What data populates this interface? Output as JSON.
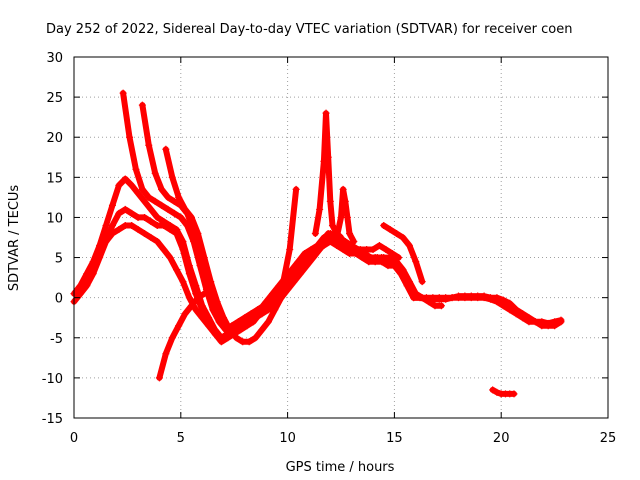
{
  "chart_data": {
    "type": "scatter",
    "title": "Day 252 of 2022, Sidereal Day-to-day VTEC variation (SDTVAR) for receiver coen",
    "xlabel": "GPS time / hours",
    "ylabel": "SDTVAR / TECUs",
    "xlim": [
      0,
      25
    ],
    "ylim": [
      -15,
      30
    ],
    "xticks": [
      0,
      5,
      10,
      15,
      20,
      25
    ],
    "yticks": [
      -15,
      -10,
      -5,
      0,
      5,
      10,
      15,
      20,
      25,
      30
    ],
    "xtick_labels": [
      "0",
      "5",
      "10",
      "15",
      "20",
      "25"
    ],
    "ytick_labels": [
      "-15",
      "-10",
      "-5",
      "0",
      "5",
      "10",
      "15",
      "20",
      "25",
      "30"
    ],
    "grid": true,
    "marker": "+",
    "color": "#ff0000",
    "series": [
      {
        "name": "arc-1",
        "x": [
          0.0,
          0.3,
          0.6,
          0.9,
          1.2,
          1.5,
          1.8,
          2.1,
          2.4,
          2.7,
          3.0,
          3.3,
          3.6,
          3.9,
          4.2,
          4.5,
          4.8,
          5.1,
          5.4,
          5.7,
          6.0,
          6.3,
          6.6,
          6.9,
          7.2,
          7.5,
          7.8,
          8.1,
          8.4,
          8.7,
          9.0,
          9.3,
          9.6,
          9.9,
          10.2,
          10.5,
          10.8,
          11.1,
          11.4,
          11.7,
          12.0,
          12.3,
          12.6,
          12.9,
          13.2,
          13.5,
          13.8,
          14.1,
          14.4,
          14.7,
          15.0
        ],
        "y": [
          0.5,
          1.5,
          3.0,
          4.5,
          6.5,
          9.0,
          11.5,
          14.0,
          14.8,
          14.0,
          13.0,
          12.0,
          11.0,
          10.0,
          9.5,
          9.0,
          8.5,
          7.0,
          4.0,
          1.5,
          -1.0,
          -2.5,
          -4.0,
          -5.0,
          -4.5,
          -4.0,
          -3.5,
          -3.0,
          -2.5,
          -1.5,
          -0.5,
          0.5,
          1.5,
          2.5,
          3.5,
          4.5,
          5.5,
          6.0,
          6.5,
          7.5,
          8.0,
          7.5,
          7.0,
          6.5,
          6.0,
          5.5,
          5.0,
          5.0,
          5.0,
          4.5,
          4.0
        ]
      },
      {
        "name": "arc-2",
        "x": [
          0.0,
          0.3,
          0.6,
          0.9,
          1.2,
          1.5,
          1.8,
          2.1,
          2.4,
          2.7,
          3.0,
          3.3,
          3.6,
          3.9,
          4.2,
          4.5,
          4.8,
          5.1,
          5.4,
          5.7,
          6.0,
          6.3,
          6.6,
          6.9,
          7.2,
          7.5,
          7.8,
          8.1,
          8.4,
          8.7,
          9.0,
          9.3,
          9.6,
          9.9,
          10.2,
          10.5,
          10.8,
          11.1,
          11.4,
          11.7,
          12.0,
          12.3,
          12.6,
          12.9,
          13.2,
          13.5,
          13.8,
          14.1,
          14.4,
          14.7,
          15.0,
          15.3,
          15.6,
          15.9,
          16.2,
          16.5,
          16.8,
          17.1,
          17.4,
          17.7,
          18.0,
          18.3,
          18.6,
          18.9,
          19.2,
          19.5,
          19.8,
          20.1,
          20.4,
          20.7,
          21.0,
          21.3,
          21.6,
          21.9,
          22.2,
          22.5,
          22.8
        ],
        "y": [
          -0.5,
          0.5,
          1.5,
          3.0,
          5.0,
          7.0,
          9.0,
          10.5,
          11.0,
          10.5,
          10.0,
          10.0,
          9.5,
          9.0,
          9.0,
          8.5,
          8.0,
          6.0,
          3.0,
          0.5,
          -1.5,
          -3.0,
          -4.5,
          -5.5,
          -5.0,
          -4.5,
          -4.0,
          -3.5,
          -3.0,
          -2.0,
          -1.0,
          0.0,
          1.0,
          2.0,
          3.0,
          4.0,
          5.0,
          5.5,
          6.0,
          7.0,
          7.5,
          7.0,
          6.5,
          6.0,
          5.5,
          5.0,
          4.5,
          4.5,
          4.5,
          4.0,
          4.0,
          3.0,
          1.5,
          0.0,
          0.0,
          0.0,
          0.0,
          0.0,
          0.0,
          0.0,
          0.2,
          0.2,
          0.2,
          0.2,
          0.2,
          0.0,
          0.0,
          -0.3,
          -0.7,
          -1.5,
          -2.0,
          -2.5,
          -3.0,
          -3.0,
          -3.2,
          -3.0,
          -2.8
        ]
      },
      {
        "name": "arc-3",
        "x": [
          1.5,
          1.8,
          2.1,
          2.4,
          2.7,
          3.0,
          3.3,
          3.6,
          3.9,
          4.2,
          4.5,
          4.8,
          5.1,
          5.4,
          5.7,
          6.0,
          6.3,
          6.6,
          6.9,
          7.2,
          7.5,
          7.8,
          8.1,
          8.4,
          8.7,
          9.0,
          9.3,
          9.6,
          9.9,
          10.2,
          10.5,
          10.8,
          11.1,
          11.4,
          11.7,
          12.0,
          12.3,
          12.6,
          12.9,
          13.2,
          13.5,
          13.8,
          14.1,
          14.4,
          14.7,
          15.0,
          15.3,
          15.6,
          15.9,
          16.2,
          16.5,
          16.8,
          17.1,
          17.4,
          17.7,
          18.0,
          18.3,
          18.6,
          18.9,
          19.2,
          19.5,
          19.8,
          20.1,
          20.4,
          20.7,
          21.0,
          21.3,
          21.6,
          21.9,
          22.2,
          22.5,
          22.8
        ],
        "y": [
          7.0,
          8.0,
          8.5,
          9.0,
          9.0,
          8.5,
          8.0,
          7.5,
          7.0,
          6.0,
          5.0,
          3.5,
          2.0,
          0.0,
          -1.5,
          -2.5,
          -3.5,
          -4.5,
          -5.0,
          -4.5,
          -4.0,
          -3.5,
          -3.0,
          -2.5,
          -2.0,
          -1.0,
          0.0,
          1.0,
          2.0,
          3.0,
          4.0,
          5.0,
          5.5,
          6.0,
          6.5,
          7.0,
          6.5,
          6.0,
          5.5,
          5.5,
          5.0,
          4.5,
          4.5,
          4.5,
          4.5,
          4.0,
          3.0,
          1.5,
          0.0,
          0.0,
          -0.2,
          -0.2,
          -0.2,
          -0.2,
          0.0,
          0.0,
          0.0,
          0.0,
          0.0,
          0.0,
          -0.2,
          -0.5,
          -1.0,
          -1.5,
          -2.0,
          -2.5,
          -3.0,
          -3.0,
          -3.5,
          -3.5,
          -3.5,
          -3.0
        ]
      },
      {
        "name": "arc-4",
        "x": [
          2.3,
          2.6,
          2.9,
          3.2,
          3.5,
          3.8,
          4.1,
          4.4,
          4.7,
          5.0,
          5.3,
          5.6,
          5.9,
          6.2,
          6.5,
          6.8,
          7.1,
          7.4,
          7.7,
          8.0,
          8.3,
          8.6,
          8.9,
          9.2,
          9.5,
          9.8,
          10.1,
          10.4,
          10.7,
          11.0,
          11.3,
          11.6,
          11.9,
          12.2,
          12.5,
          12.8,
          13.1,
          13.4,
          13.7,
          14.0,
          14.3,
          14.6,
          14.9,
          15.2
        ],
        "y": [
          25.5,
          20.0,
          16.0,
          13.5,
          12.5,
          12.0,
          11.5,
          11.0,
          10.5,
          10.0,
          9.0,
          7.0,
          4.0,
          1.0,
          -1.5,
          -3.0,
          -4.0,
          -3.5,
          -3.0,
          -2.5,
          -2.0,
          -1.5,
          -1.0,
          -0.5,
          0.0,
          1.0,
          2.0,
          3.0,
          4.0,
          5.0,
          6.0,
          7.0,
          8.0,
          7.5,
          7.0,
          6.5,
          6.0,
          6.0,
          6.0,
          6.0,
          6.5,
          6.0,
          5.5,
          5.0
        ]
      },
      {
        "name": "arc-5",
        "x": [
          3.2,
          3.5,
          3.8,
          4.1,
          4.4,
          4.7,
          5.0,
          5.3,
          5.6,
          5.9,
          6.2,
          6.5,
          6.8,
          7.1,
          7.4,
          7.7,
          8.0,
          8.3,
          8.6,
          8.9,
          9.2,
          9.5,
          9.8,
          10.1,
          10.4
        ],
        "y": [
          24.0,
          19.0,
          15.5,
          13.5,
          12.5,
          12.0,
          11.5,
          10.5,
          8.5,
          5.5,
          2.0,
          -1.0,
          -3.0,
          -4.0,
          -3.5,
          -3.0,
          -2.5,
          -2.0,
          -1.5,
          -1.0,
          -0.5,
          0.0,
          2.0,
          6.0,
          13.5
        ]
      },
      {
        "name": "arc-6",
        "x": [
          4.3,
          4.6,
          4.9,
          5.2,
          5.5,
          5.8,
          6.1,
          6.4,
          6.7,
          7.0,
          7.3,
          7.6,
          7.9,
          8.2,
          8.5,
          8.8,
          9.1,
          9.4,
          9.7,
          10.0
        ],
        "y": [
          18.5,
          15.0,
          12.5,
          11.0,
          10.0,
          8.0,
          5.0,
          2.0,
          -0.5,
          -2.5,
          -4.0,
          -5.0,
          -5.5,
          -5.5,
          -5.0,
          -4.0,
          -3.0,
          -1.5,
          0.0,
          1.5
        ]
      },
      {
        "name": "arc-7",
        "x": [
          4.0,
          4.3,
          4.6,
          4.9,
          5.2,
          5.5,
          5.8,
          6.1,
          6.4,
          6.7,
          7.0,
          7.3,
          7.6,
          7.9,
          8.2,
          8.5,
          8.8,
          9.1,
          9.4,
          9.7,
          10.0,
          10.3,
          10.6,
          10.9,
          11.2,
          11.5,
          11.8,
          12.1,
          12.4,
          12.7,
          13.0,
          13.3,
          13.6,
          13.9,
          14.2,
          14.5,
          14.8,
          15.1,
          15.4,
          15.7,
          16.0,
          16.3,
          16.6,
          16.9,
          17.2
        ],
        "y": [
          -10.0,
          -7.0,
          -5.0,
          -3.5,
          -2.0,
          -1.0,
          0.0,
          0.5,
          1.0,
          -1.0,
          -3.0,
          -4.0,
          -4.0,
          -3.5,
          -3.0,
          -2.5,
          -2.0,
          -1.5,
          -1.0,
          0.0,
          1.0,
          2.0,
          3.0,
          4.0,
          5.0,
          6.0,
          7.0,
          7.5,
          7.5,
          7.0,
          6.5,
          6.0,
          5.5,
          5.0,
          5.0,
          5.0,
          5.0,
          4.5,
          3.5,
          2.0,
          0.5,
          0.0,
          -0.5,
          -1.0,
          -1.0
        ]
      },
      {
        "name": "spike-12h",
        "x": [
          11.3,
          11.5,
          11.7,
          11.8,
          11.9,
          12.0,
          12.1,
          12.3,
          12.5
        ],
        "y": [
          8.0,
          11.0,
          17.0,
          23.0,
          17.5,
          12.0,
          9.0,
          8.0,
          7.5
        ]
      },
      {
        "name": "spike-12.6h",
        "x": [
          12.3,
          12.5,
          12.6,
          12.7,
          12.8,
          12.9,
          13.1
        ],
        "y": [
          7.5,
          10.0,
          13.5,
          12.0,
          10.0,
          8.0,
          7.0
        ]
      },
      {
        "name": "arc-8",
        "x": [
          14.5,
          14.8,
          15.1,
          15.4,
          15.7,
          16.0,
          16.3
        ],
        "y": [
          9.0,
          8.5,
          8.0,
          7.5,
          6.5,
          4.5,
          2.0
        ]
      },
      {
        "name": "arc-9",
        "x": [
          19.6,
          19.8,
          20.0,
          20.2,
          20.4,
          20.6
        ],
        "y": [
          -11.5,
          -11.8,
          -12.0,
          -12.0,
          -12.0,
          -12.0
        ]
      }
    ]
  }
}
